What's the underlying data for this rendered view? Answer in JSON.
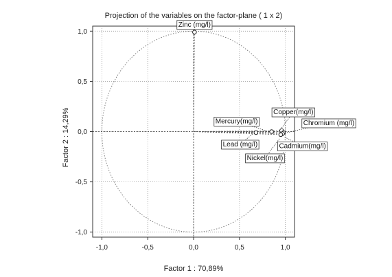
{
  "chart_data": {
    "type": "scatter",
    "title": "Projection of the variables on the factor-plane  ( 1 x  2)",
    "xlabel": "Factor 1 : 70,89%",
    "ylabel": "Factor 2 : 14,29%",
    "xlim": [
      -1.1,
      1.1
    ],
    "ylim": [
      -1.05,
      1.05
    ],
    "x_ticks": [
      -1.0,
      -0.5,
      0.0,
      0.5,
      1.0
    ],
    "x_tick_labels": [
      "-1,0",
      "-0,5",
      "0,0",
      "0,5",
      "1,0"
    ],
    "y_ticks": [
      1.0,
      0.5,
      0.0,
      -0.5,
      -1.0
    ],
    "y_tick_labels": [
      "1,0",
      "0,5",
      "0,0",
      "-0,5",
      "-1,0"
    ],
    "grid": true,
    "unit_circle": true,
    "points": [
      {
        "label": "Zinc (mg/l)",
        "x": 0.01,
        "y": 0.99
      },
      {
        "label": "Copper(mg/l)",
        "x": 0.96,
        "y": 0.01
      },
      {
        "label": "Mercury(mg/l)",
        "x": 0.85,
        "y": 0.0
      },
      {
        "label": "Chromium  (mg/l)",
        "x": 0.98,
        "y": -0.01
      },
      {
        "label": "Lead  (mg/l)",
        "x": 0.68,
        "y": -0.01
      },
      {
        "label": "Cadmium(mg/l)",
        "x": 0.97,
        "y": -0.02
      },
      {
        "label": "Nickel(mg/l)",
        "x": 0.95,
        "y": -0.03
      }
    ],
    "colors": {
      "axes": "#333333",
      "grid": "#9a9a9a",
      "circle": "#6f6f6f",
      "vectors": "#555555",
      "label_border": "#333333",
      "label_bg": "#ffffff"
    }
  }
}
